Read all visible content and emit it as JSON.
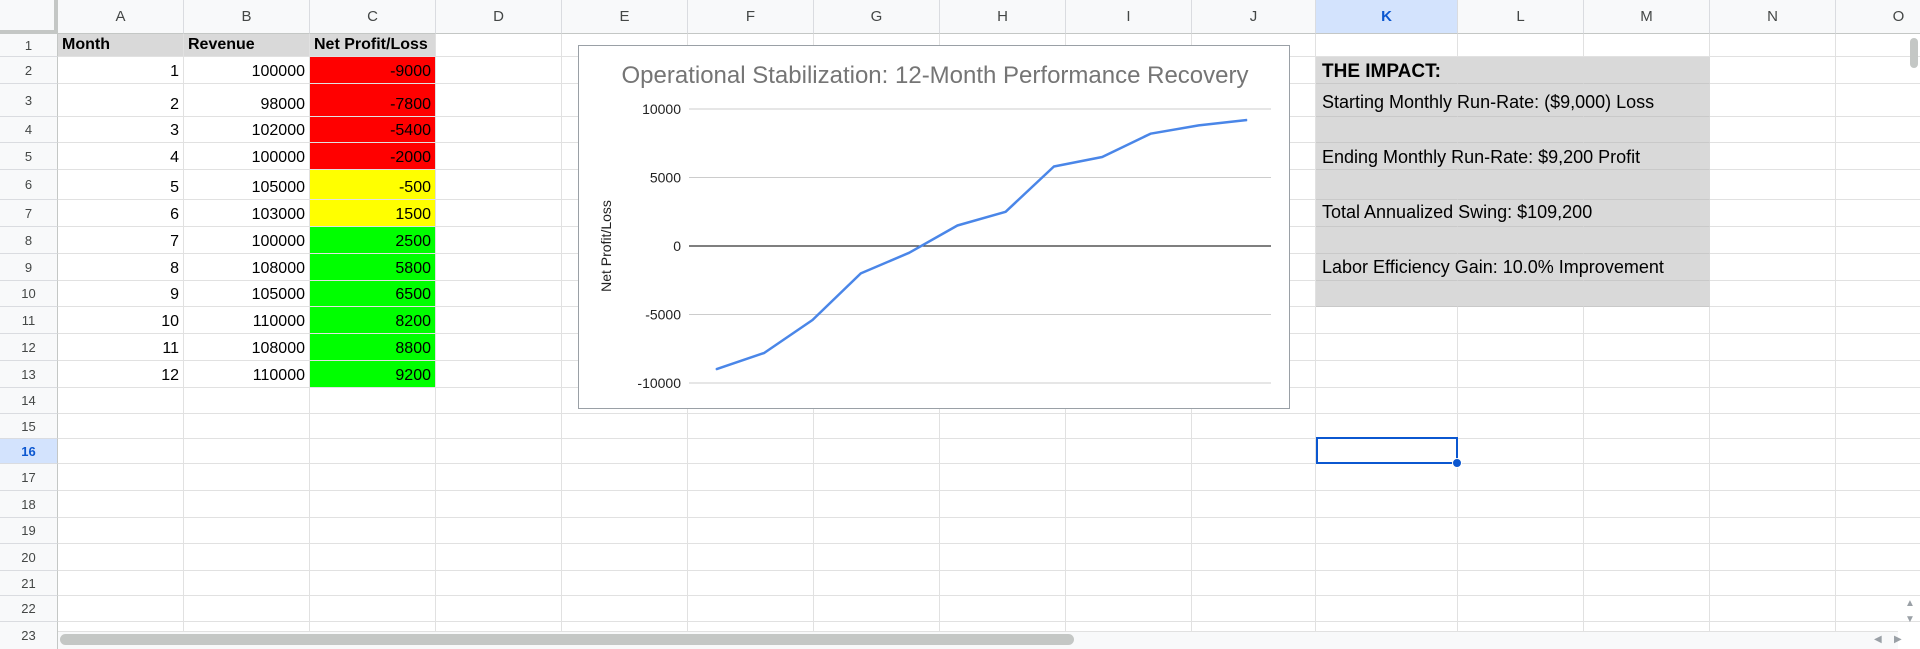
{
  "columns": [
    {
      "label": "A",
      "selected": false
    },
    {
      "label": "B",
      "selected": false
    },
    {
      "label": "C",
      "selected": false
    },
    {
      "label": "D",
      "selected": false
    },
    {
      "label": "E",
      "selected": false
    },
    {
      "label": "F",
      "selected": false
    },
    {
      "label": "G",
      "selected": false
    },
    {
      "label": "H",
      "selected": false
    },
    {
      "label": "I",
      "selected": false
    },
    {
      "label": "J",
      "selected": false
    },
    {
      "label": "K",
      "selected": true
    },
    {
      "label": "L",
      "selected": false
    },
    {
      "label": "M",
      "selected": false
    },
    {
      "label": "N",
      "selected": false
    },
    {
      "label": "O",
      "selected": false
    }
  ],
  "rows": [
    "1",
    "2",
    "3",
    "4",
    "5",
    "6",
    "7",
    "8",
    "9",
    "10",
    "11",
    "12",
    "13",
    "14",
    "15",
    "16",
    "17",
    "18",
    "19",
    "20",
    "21",
    "22",
    "23"
  ],
  "selected_row": "16",
  "selected_cell": "K16",
  "table": {
    "headers": [
      "Month",
      "Revenue",
      "Net Profit/Loss"
    ],
    "rows": [
      {
        "month": "1",
        "revenue": "100000",
        "net": "-9000",
        "fill": "red"
      },
      {
        "month": "2",
        "revenue": "98000",
        "net": "-7800",
        "fill": "red"
      },
      {
        "month": "3",
        "revenue": "102000",
        "net": "-5400",
        "fill": "red"
      },
      {
        "month": "4",
        "revenue": "100000",
        "net": "-2000",
        "fill": "red"
      },
      {
        "month": "5",
        "revenue": "105000",
        "net": "-500",
        "fill": "yellow"
      },
      {
        "month": "6",
        "revenue": "103000",
        "net": "1500",
        "fill": "yellow"
      },
      {
        "month": "7",
        "revenue": "100000",
        "net": "2500",
        "fill": "green"
      },
      {
        "month": "8",
        "revenue": "108000",
        "net": "5800",
        "fill": "green"
      },
      {
        "month": "9",
        "revenue": "105000",
        "net": "6500",
        "fill": "green"
      },
      {
        "month": "10",
        "revenue": "110000",
        "net": "8200",
        "fill": "green"
      },
      {
        "month": "11",
        "revenue": "108000",
        "net": "8800",
        "fill": "green"
      },
      {
        "month": "12",
        "revenue": "110000",
        "net": "9200",
        "fill": "green"
      }
    ]
  },
  "impact": {
    "title": "THE IMPACT:",
    "lines": [
      "Starting Monthly Run-Rate: ($9,000) Loss",
      "Ending Monthly Run-Rate: $9,200 Profit",
      "Total Annualized Swing: $109,200",
      "Labor Efficiency Gain: 10.0% Improvement"
    ]
  },
  "colors": {
    "red": "#ff0000",
    "yellow": "#ffff00",
    "green": "#00ff00",
    "line": "#4a86e8",
    "selection": "#0b57d0"
  },
  "chart_data": {
    "type": "line",
    "title": "Operational Stabilization: 12-Month Performance Recovery",
    "xlabel": "",
    "ylabel": "Net Profit/Loss",
    "x": [
      1,
      2,
      3,
      4,
      5,
      6,
      7,
      8,
      9,
      10,
      11,
      12
    ],
    "series": [
      {
        "values": [
          -9000,
          -7800,
          -5400,
          -2000,
          -500,
          1500,
          2500,
          5800,
          6500,
          8200,
          8800,
          9200
        ]
      }
    ],
    "yticks": [
      "10000",
      "5000",
      "0",
      "-5000",
      "-10000"
    ],
    "ylim": [
      -10000,
      10000
    ],
    "grid": true,
    "legend": "none"
  }
}
